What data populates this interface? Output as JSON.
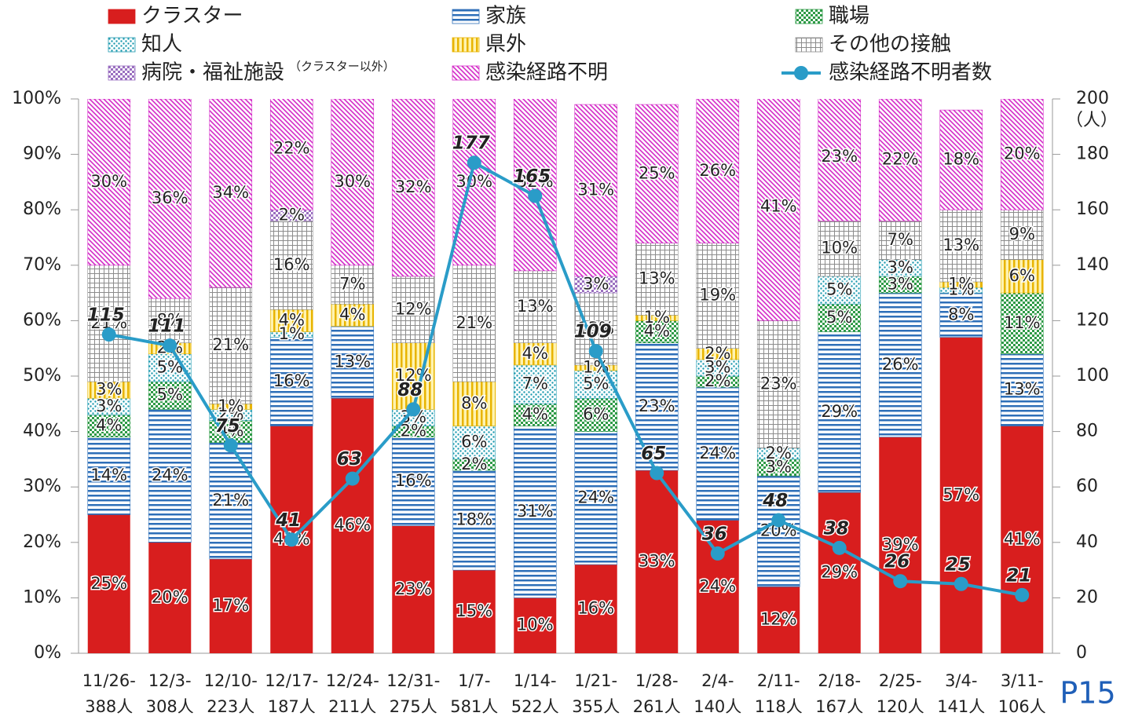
{
  "chart_data": {
    "type": "stacked_bar_line",
    "categories": [
      "11/26-",
      "12/3-",
      "12/10-",
      "12/17-",
      "12/24-",
      "12/31-",
      "1/7-",
      "1/14-",
      "1/21-",
      "1/28-",
      "2/4-",
      "2/11-",
      "2/18-",
      "2/25-",
      "3/4-",
      "3/11-"
    ],
    "category_totals": [
      "388人",
      "308人",
      "223人",
      "187人",
      "211人",
      "275人",
      "581人",
      "522人",
      "355人",
      "261人",
      "140人",
      "118人",
      "167人",
      "120人",
      "141人",
      "106人"
    ],
    "series": [
      {
        "name": "クラスター",
        "color": "#d81e1e",
        "pattern": "solid",
        "values": [
          25,
          20,
          17,
          41,
          46,
          23,
          15,
          10,
          16,
          33,
          24,
          12,
          29,
          39,
          57,
          41
        ],
        "value_labels": [
          "25%",
          "20%",
          "17%",
          "41%",
          "46%",
          "23%",
          "15%",
          "10%",
          "16%",
          "33%",
          "24%",
          "12%",
          "29%",
          "39%",
          "57%",
          "41%"
        ]
      },
      {
        "name": "家族",
        "color": "#2e6fb8",
        "pattern": "hlines",
        "values": [
          14,
          24,
          21,
          16,
          13,
          16,
          18,
          31,
          24,
          23,
          24,
          20,
          29,
          26,
          8,
          13
        ],
        "value_labels": [
          "14%",
          "24%",
          "21%",
          "16%",
          "13%",
          "16%",
          "18%",
          "31%",
          "24%",
          "23%",
          "24%",
          "20%",
          "29%",
          "26%",
          "8%",
          "13%"
        ]
      },
      {
        "name": "職場",
        "color": "#2e9a46",
        "pattern": "check",
        "values": [
          4,
          5,
          4,
          0,
          0,
          2,
          2,
          4,
          6,
          4,
          2,
          3,
          5,
          3,
          0,
          11
        ],
        "value_labels": [
          "4%",
          "5%",
          "4%",
          null,
          null,
          "2%",
          "2%",
          "4%",
          "6%",
          "4%",
          "2%",
          "3%",
          "5%",
          "3%",
          null,
          "11%"
        ]
      },
      {
        "name": "知人",
        "color": "#1e9ab0",
        "pattern": "dots",
        "values": [
          3,
          5,
          2,
          1,
          0,
          3,
          6,
          7,
          5,
          0,
          3,
          2,
          5,
          3,
          1,
          0
        ],
        "value_labels": [
          "3%",
          "5%",
          "2%",
          "1%",
          null,
          "3%",
          "6%",
          "7%",
          "5%",
          null,
          "3%",
          "2%",
          "5%",
          "3%",
          "1%",
          null
        ]
      },
      {
        "name": "県外",
        "color": "#e8b400",
        "pattern": "vlines",
        "values": [
          3,
          2,
          1,
          4,
          4,
          12,
          8,
          4,
          1,
          1,
          2,
          0,
          0,
          0,
          1,
          6
        ],
        "value_labels": [
          "3%",
          "2%",
          "1%",
          "4%",
          "4%",
          "12%",
          "8%",
          "4%",
          "1%",
          "1%",
          "2%",
          null,
          null,
          null,
          "1%",
          "6%"
        ]
      },
      {
        "name": "その他の接触",
        "color": "#8c8c8c",
        "pattern": "grid",
        "values": [
          21,
          8,
          21,
          16,
          7,
          12,
          21,
          13,
          13,
          13,
          19,
          23,
          10,
          7,
          13,
          9
        ],
        "value_labels": [
          "21%",
          "8%",
          "21%",
          "16%",
          "7%",
          "12%",
          "21%",
          "13%",
          "13%",
          "13%",
          "19%",
          "23%",
          "10%",
          "7%",
          "13%",
          "9%"
        ]
      },
      {
        "name": "病院・福祉施設",
        "color": "#9a6fc0",
        "pattern": "check",
        "values": [
          0,
          0,
          0,
          2,
          0,
          0,
          0,
          0,
          3,
          0,
          0,
          0,
          0,
          0,
          0,
          0
        ],
        "value_labels": [
          null,
          null,
          null,
          "2%",
          null,
          null,
          null,
          null,
          "3%",
          null,
          null,
          null,
          null,
          null,
          null,
          null
        ]
      },
      {
        "name": "感染経路不明",
        "color": "#d42ac8",
        "pattern": "diag",
        "values": [
          30,
          36,
          34,
          22,
          30,
          32,
          30,
          32,
          31,
          25,
          26,
          41,
          23,
          22,
          18,
          20
        ],
        "value_labels": [
          "30%",
          "36%",
          "34%",
          "22%",
          "30%",
          "32%",
          "30%",
          "32%",
          "31%",
          "25%",
          "26%",
          "41%",
          "23%",
          "22%",
          "18%",
          "20%"
        ]
      },
      {
        "name": "感染経路不明者数",
        "color": "#2a9cc8",
        "axis": "y2",
        "values": [
          115,
          111,
          75,
          41,
          63,
          88,
          177,
          165,
          109,
          65,
          36,
          48,
          38,
          26,
          25,
          21
        ]
      }
    ],
    "legend_note": "（クラスター以外）",
    "ylim": [
      0,
      100
    ],
    "yticks": [
      {
        "value": 0,
        "label": "0%"
      },
      {
        "value": 10,
        "label": "10%"
      },
      {
        "value": 20,
        "label": "20%"
      },
      {
        "value": 30,
        "label": "30%"
      },
      {
        "value": 40,
        "label": "40%"
      },
      {
        "value": 50,
        "label": "50%"
      },
      {
        "value": 60,
        "label": "60%"
      },
      {
        "value": 70,
        "label": "70%"
      },
      {
        "value": 80,
        "label": "80%"
      },
      {
        "value": 90,
        "label": "90%"
      },
      {
        "value": 100,
        "label": "100%"
      }
    ],
    "y2lim": [
      0,
      200
    ],
    "y2ticks": [
      0,
      20,
      40,
      60,
      80,
      100,
      120,
      140,
      160,
      180,
      200
    ],
    "y2_label": "（人）",
    "page_number": "P15"
  }
}
